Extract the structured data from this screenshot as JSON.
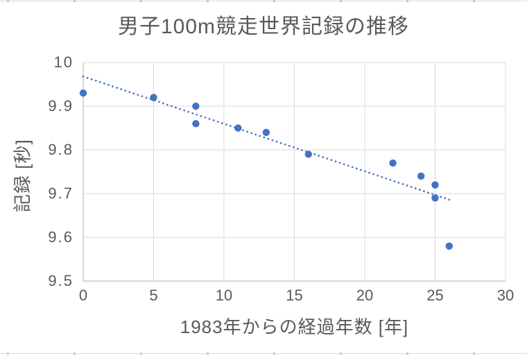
{
  "chart_data": {
    "type": "scatter",
    "title": "男子100m競走世界記録の推移",
    "xlabel": "1983年からの経過年数 [年]",
    "ylabel": "記録 [秒]",
    "xlim": [
      0,
      30
    ],
    "ylim": [
      9.5,
      10
    ],
    "grid": true,
    "legend": "none",
    "x_ticks": [
      {
        "value": 0,
        "label": "0"
      },
      {
        "value": 5,
        "label": "5"
      },
      {
        "value": 10,
        "label": "10"
      },
      {
        "value": 15,
        "label": "15"
      },
      {
        "value": 20,
        "label": "20"
      },
      {
        "value": 25,
        "label": "25"
      },
      {
        "value": 30,
        "label": "30"
      }
    ],
    "y_ticks": [
      {
        "value": 9.5,
        "label": "9.5"
      },
      {
        "value": 9.6,
        "label": "9.6"
      },
      {
        "value": 9.7,
        "label": "9.7"
      },
      {
        "value": 9.8,
        "label": "9.8"
      },
      {
        "value": 9.9,
        "label": "9.9"
      },
      {
        "value": 10,
        "label": "10"
      }
    ],
    "points": [
      {
        "x": 0,
        "y": 9.93
      },
      {
        "x": 5,
        "y": 9.92
      },
      {
        "x": 8,
        "y": 9.9
      },
      {
        "x": 8,
        "y": 9.86
      },
      {
        "x": 11,
        "y": 9.85
      },
      {
        "x": 13,
        "y": 9.84
      },
      {
        "x": 16,
        "y": 9.79
      },
      {
        "x": 22,
        "y": 9.77
      },
      {
        "x": 24,
        "y": 9.74
      },
      {
        "x": 25,
        "y": 9.72
      },
      {
        "x": 25,
        "y": 9.69
      },
      {
        "x": 26,
        "y": 9.58
      }
    ],
    "trendline": {
      "type": "linear",
      "style": "dotted",
      "x1": 0,
      "y1": 9.968,
      "x2": 26.2,
      "y2": 9.684
    },
    "colors": {
      "marker": "#4472C4",
      "trendline": "#4472C4",
      "gridline": "#D9D9D9",
      "axis_line": "#BFBFBF",
      "text": "#595959",
      "background": "#FFFFFF",
      "sheet_edge_line": "#DADADA",
      "sheet_edge_mark": "#C3C3C3"
    }
  }
}
